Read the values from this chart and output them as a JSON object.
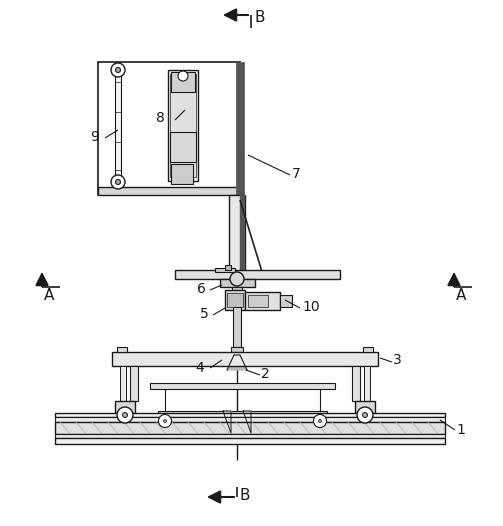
{
  "background_color": "#ffffff",
  "line_color": "#1a1a1a",
  "labels": {
    "B_top": "B",
    "B_bottom": "B",
    "A_left": "A",
    "A_right": "A",
    "num_1": "1",
    "num_2": "2",
    "num_3": "3",
    "num_4": "4",
    "num_5": "5",
    "num_6": "6",
    "num_7": "7",
    "num_8": "8",
    "num_9": "9",
    "num_10": "10"
  }
}
